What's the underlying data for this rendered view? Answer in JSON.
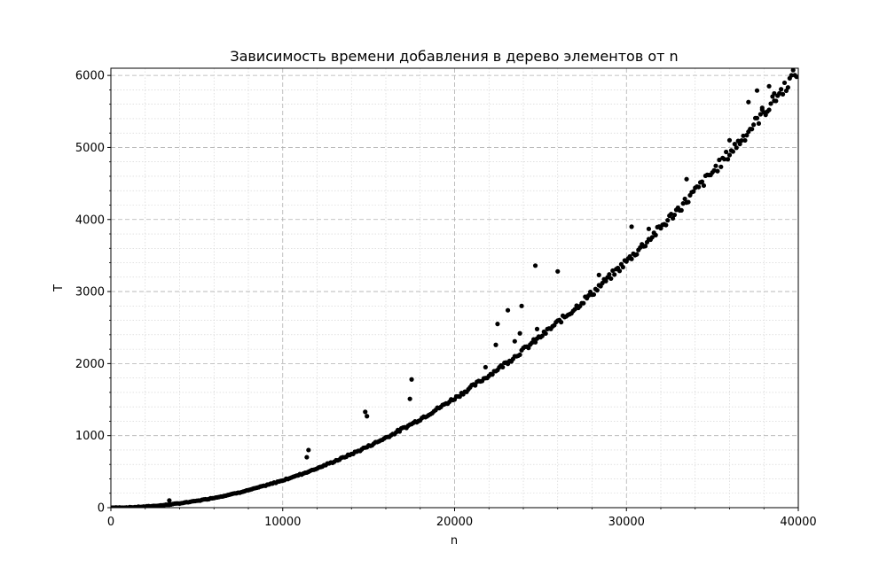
{
  "chart_data": {
    "type": "scatter",
    "title": "Зависимость времени добавления в дерево элементов от n",
    "xlabel": "n",
    "ylabel": "T",
    "xlim": [
      0,
      40000
    ],
    "ylim": [
      0,
      6100
    ],
    "xticks": [
      0,
      10000,
      20000,
      30000,
      40000
    ],
    "yticks": [
      0,
      1000,
      2000,
      3000,
      4000,
      5000,
      6000
    ],
    "x_minor_step": 2000,
    "y_minor_step": 200,
    "grid": true,
    "marker_color": "#000000",
    "curve": {
      "x_start": 0,
      "x_end": 40000,
      "x_step": 100,
      "coefficient": 3.8e-06
    },
    "outliers": [
      {
        "x": 3400,
        "y": 100
      },
      {
        "x": 11400,
        "y": 700
      },
      {
        "x": 11500,
        "y": 800
      },
      {
        "x": 14800,
        "y": 1330
      },
      {
        "x": 14900,
        "y": 1270
      },
      {
        "x": 17400,
        "y": 1510
      },
      {
        "x": 17500,
        "y": 1780
      },
      {
        "x": 21800,
        "y": 1950
      },
      {
        "x": 22400,
        "y": 2260
      },
      {
        "x": 22500,
        "y": 2550
      },
      {
        "x": 23100,
        "y": 2740
      },
      {
        "x": 23500,
        "y": 2310
      },
      {
        "x": 23800,
        "y": 2420
      },
      {
        "x": 23900,
        "y": 2800
      },
      {
        "x": 24700,
        "y": 3360
      },
      {
        "x": 24800,
        "y": 2480
      },
      {
        "x": 26000,
        "y": 3280
      },
      {
        "x": 28400,
        "y": 3230
      },
      {
        "x": 30300,
        "y": 3900
      },
      {
        "x": 31300,
        "y": 3870
      },
      {
        "x": 33500,
        "y": 4560
      },
      {
        "x": 36000,
        "y": 5100
      },
      {
        "x": 37100,
        "y": 5630
      },
      {
        "x": 37600,
        "y": 5790
      },
      {
        "x": 37900,
        "y": 5550
      },
      {
        "x": 38300,
        "y": 5850
      },
      {
        "x": 38600,
        "y": 5750
      }
    ]
  }
}
